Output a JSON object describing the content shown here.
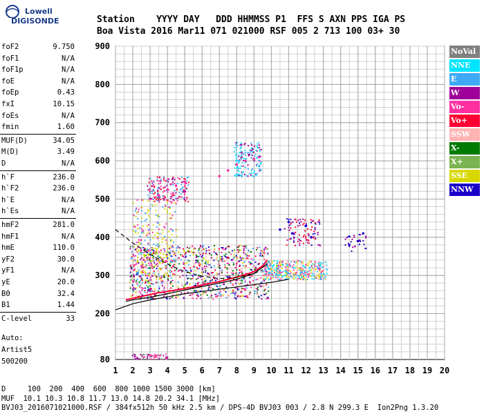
{
  "logo": {
    "line1": "Lowell",
    "line2": "DIGISONDE"
  },
  "header": {
    "line1": "Station    YYYY DAY   DDD HHMMSS P1  FFS S AXN PPS IGA PS",
    "line2": "Boa Vista 2016 Mar11 071 021000 RSF 005 2 713 100 03+ 30"
  },
  "params": [
    {
      "k": "foF2",
      "v": "9.750"
    },
    {
      "k": "foF1",
      "v": "N/A"
    },
    {
      "k": "foF1p",
      "v": "N/A"
    },
    {
      "k": "foE",
      "v": "N/A"
    },
    {
      "k": "foEp",
      "v": "0.43"
    },
    {
      "k": "fxI",
      "v": "10.15"
    },
    {
      "k": "foEs",
      "v": "N/A"
    },
    {
      "k": "fmin",
      "v": "1.60"
    },
    {
      "k": "MUF(D)",
      "v": "34.05"
    },
    {
      "k": "M(D)",
      "v": "3.49"
    },
    {
      "k": "D",
      "v": "N/A"
    },
    {
      "k": "h`F",
      "v": "236.0"
    },
    {
      "k": "h`F2",
      "v": "236.0"
    },
    {
      "k": "h`E",
      "v": "N/A"
    },
    {
      "k": "h`Es",
      "v": "N/A"
    },
    {
      "k": "hmF2",
      "v": "281.0"
    },
    {
      "k": "hmF1",
      "v": "N/A"
    },
    {
      "k": "hmE",
      "v": "110.0"
    },
    {
      "k": "yF2",
      "v": "30.0"
    },
    {
      "k": "yF1",
      "v": "N/A"
    },
    {
      "k": "yE",
      "v": "20.0"
    },
    {
      "k": "B0",
      "v": "32.4"
    },
    {
      "k": "B1",
      "v": "1.44"
    },
    {
      "k": "C-level",
      "v": "33"
    }
  ],
  "auto": {
    "l1": "Auto:",
    "l2": "Artist5",
    "l3": "500200"
  },
  "legend": [
    {
      "label": "NoVal",
      "color": "#808080"
    },
    {
      "label": "NNE",
      "color": "#00e5ff"
    },
    {
      "label": "E",
      "color": "#3fa9f5"
    },
    {
      "label": "W",
      "color": "#a0009a"
    },
    {
      "label": "Vo-",
      "color": "#ff2fa0"
    },
    {
      "label": "Vo+",
      "color": "#ff0033"
    },
    {
      "label": "SSW",
      "color": "#ffb3b3"
    },
    {
      "label": "X-",
      "color": "#007a00"
    },
    {
      "label": "X+",
      "color": "#7ab34f"
    },
    {
      "label": "SSE",
      "color": "#d8d800"
    },
    {
      "label": "NNW",
      "color": "#1a00c8"
    }
  ],
  "footer": {
    "line1": "D     100  200  400  600  800 1000 1500 3000 [km]",
    "line2": "MUF  10.1 10.3 10.8 11.7 13.0 14.8 20.2 34.1 [MHz]",
    "line3": "BVJ03_2016071021000.RSF / 384fx512h 50 kHz 2.5 km / DPS-4D BVJ03 003 / 2.8 N 299.3 E  Ion2Png 1.3.20"
  },
  "chart_data": {
    "type": "scatter",
    "xlim": [
      1,
      20
    ],
    "ylim": [
      80,
      900
    ],
    "x_ticks": [
      "1",
      "2",
      "3",
      "4",
      "5",
      "6",
      "7",
      "8",
      "9",
      "10",
      "11",
      "12",
      "13",
      "14",
      "15",
      "16",
      "17",
      "18",
      "19",
      "20"
    ],
    "y_ticks": [
      "80",
      "200",
      "300",
      "400",
      "500",
      "600",
      "700",
      "800",
      "900"
    ],
    "grid": true,
    "series": [
      {
        "name": "o-trace",
        "color": "#ff0033",
        "x": [
          1.6,
          2.0,
          2.5,
          3.0,
          3.5,
          4.0,
          4.5,
          5.0,
          5.5,
          6.0,
          6.5,
          7.0,
          7.5,
          8.0,
          8.5,
          9.0,
          9.5,
          9.75
        ],
        "y": [
          236,
          240,
          245,
          250,
          255,
          258,
          262,
          266,
          270,
          275,
          280,
          284,
          290,
          296,
          302,
          310,
          325,
          340
        ]
      },
      {
        "name": "profile",
        "color": "#000000",
        "x": [
          1.6,
          2,
          3,
          4,
          5,
          6,
          7,
          8,
          9,
          9.75
        ],
        "y": [
          232,
          236,
          243,
          252,
          262,
          271,
          280,
          290,
          305,
          330
        ]
      },
      {
        "name": "extrapolated-top",
        "color": "#000000",
        "x": [
          1.0,
          2,
          3,
          4,
          5,
          6,
          7,
          8,
          9,
          9.5
        ],
        "y": [
          420,
          385,
          355,
          330,
          310,
          298,
          292,
          295,
          305,
          315
        ]
      },
      {
        "name": "extrapolated-bottom",
        "color": "#000000",
        "x": [
          1.0,
          2,
          3,
          4,
          5,
          6,
          7,
          8,
          9,
          10,
          11
        ],
        "y": [
          210,
          226,
          236,
          244,
          252,
          258,
          264,
          270,
          276,
          282,
          290
        ]
      },
      {
        "name": "high-trace",
        "color": "#ff2fa0",
        "x": [
          3,
          3.5,
          4,
          4.5,
          5,
          7,
          7.5,
          8,
          8.5,
          9,
          9.3
        ],
        "y": [
          500,
          510,
          525,
          535,
          545,
          560,
          575,
          590,
          600,
          605,
          610
        ]
      },
      {
        "name": "nnw-echo",
        "color": "#1a00c8",
        "x": [
          10.5,
          11,
          11.2,
          12,
          12.3,
          14.5,
          15,
          15.3
        ],
        "y": [
          420,
          440,
          410,
          430,
          400,
          380,
          390,
          410
        ]
      }
    ]
  }
}
